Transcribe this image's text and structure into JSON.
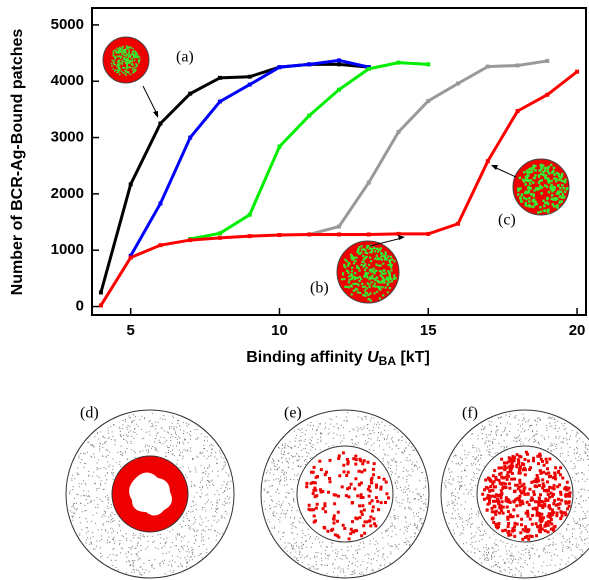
{
  "chart_data": {
    "type": "line",
    "xlabel": {
      "text": "Binding affinity ",
      "var": "U",
      "sub": "BA",
      "unit": " [kT]"
    },
    "ylabel": "Number of BCR-Ag-Bound patches",
    "xlim": [
      3.7,
      20.3
    ],
    "ylim": [
      -150,
      5300
    ],
    "xticks": [
      5,
      10,
      15,
      20
    ],
    "yticks": [
      0,
      1000,
      2000,
      3000,
      4000,
      5000
    ],
    "series": [
      {
        "color": "#000000",
        "x": [
          4,
          5,
          6,
          7,
          8,
          9,
          10,
          11,
          12,
          13
        ],
        "values": [
          250,
          2170,
          3250,
          3780,
          4060,
          4080,
          4250,
          4300,
          4300,
          4250
        ]
      },
      {
        "color": "#0000ff",
        "x": [
          5,
          6,
          7,
          8,
          9,
          10,
          11,
          12,
          13
        ],
        "values": [
          900,
          1830,
          3000,
          3640,
          3940,
          4250,
          4300,
          4370,
          4250
        ]
      },
      {
        "color": "#00ee00",
        "x": [
          7,
          8,
          9,
          10,
          11,
          12,
          13,
          14,
          15
        ],
        "values": [
          1200,
          1300,
          1630,
          2840,
          3390,
          3850,
          4220,
          4330,
          4300
        ]
      },
      {
        "color": "#999999",
        "x": [
          11,
          12,
          13,
          14,
          15,
          16,
          17,
          18,
          19
        ],
        "values": [
          1280,
          1420,
          2200,
          3100,
          3650,
          3960,
          4260,
          4280,
          4360
        ]
      },
      {
        "color": "#ff0000",
        "x": [
          4,
          5,
          6,
          7,
          8,
          9,
          10,
          11,
          12,
          13,
          14,
          15,
          16,
          17,
          18,
          19,
          20
        ],
        "values": [
          20,
          870,
          1090,
          1180,
          1220,
          1250,
          1270,
          1280,
          1280,
          1280,
          1290,
          1290,
          1470,
          2580,
          3470,
          3760,
          4170
        ]
      }
    ],
    "annotations": [
      "(a)",
      "(b)",
      "(c)"
    ],
    "panels": [
      "(d)",
      "(e)",
      "(f)"
    ]
  }
}
